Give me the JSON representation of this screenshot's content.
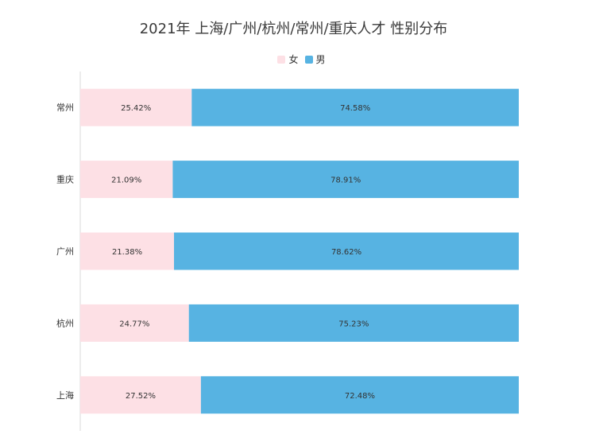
{
  "chart_data": {
    "type": "bar",
    "orientation": "horizontal",
    "stacked": true,
    "percent_stacked": true,
    "title": "2021年 上海/广州/杭州/常州/重庆人才 性别分布",
    "categories": [
      "常州",
      "重庆",
      "广州",
      "杭州",
      "上海"
    ],
    "series": [
      {
        "name": "女",
        "color": "#fde0e5",
        "values": [
          25.42,
          21.09,
          21.38,
          24.77,
          27.52
        ],
        "labels": [
          "25.42%",
          "21.09%",
          "21.38%",
          "24.77%",
          "27.52%"
        ]
      },
      {
        "name": "男",
        "color": "#57b3e2",
        "values": [
          74.58,
          78.91,
          78.62,
          75.23,
          72.48
        ],
        "labels": [
          "74.58%",
          "78.91%",
          "78.62%",
          "75.23%",
          "72.48%"
        ]
      }
    ],
    "xlim": [
      0,
      100
    ],
    "grid": false,
    "legend_position": "top"
  }
}
